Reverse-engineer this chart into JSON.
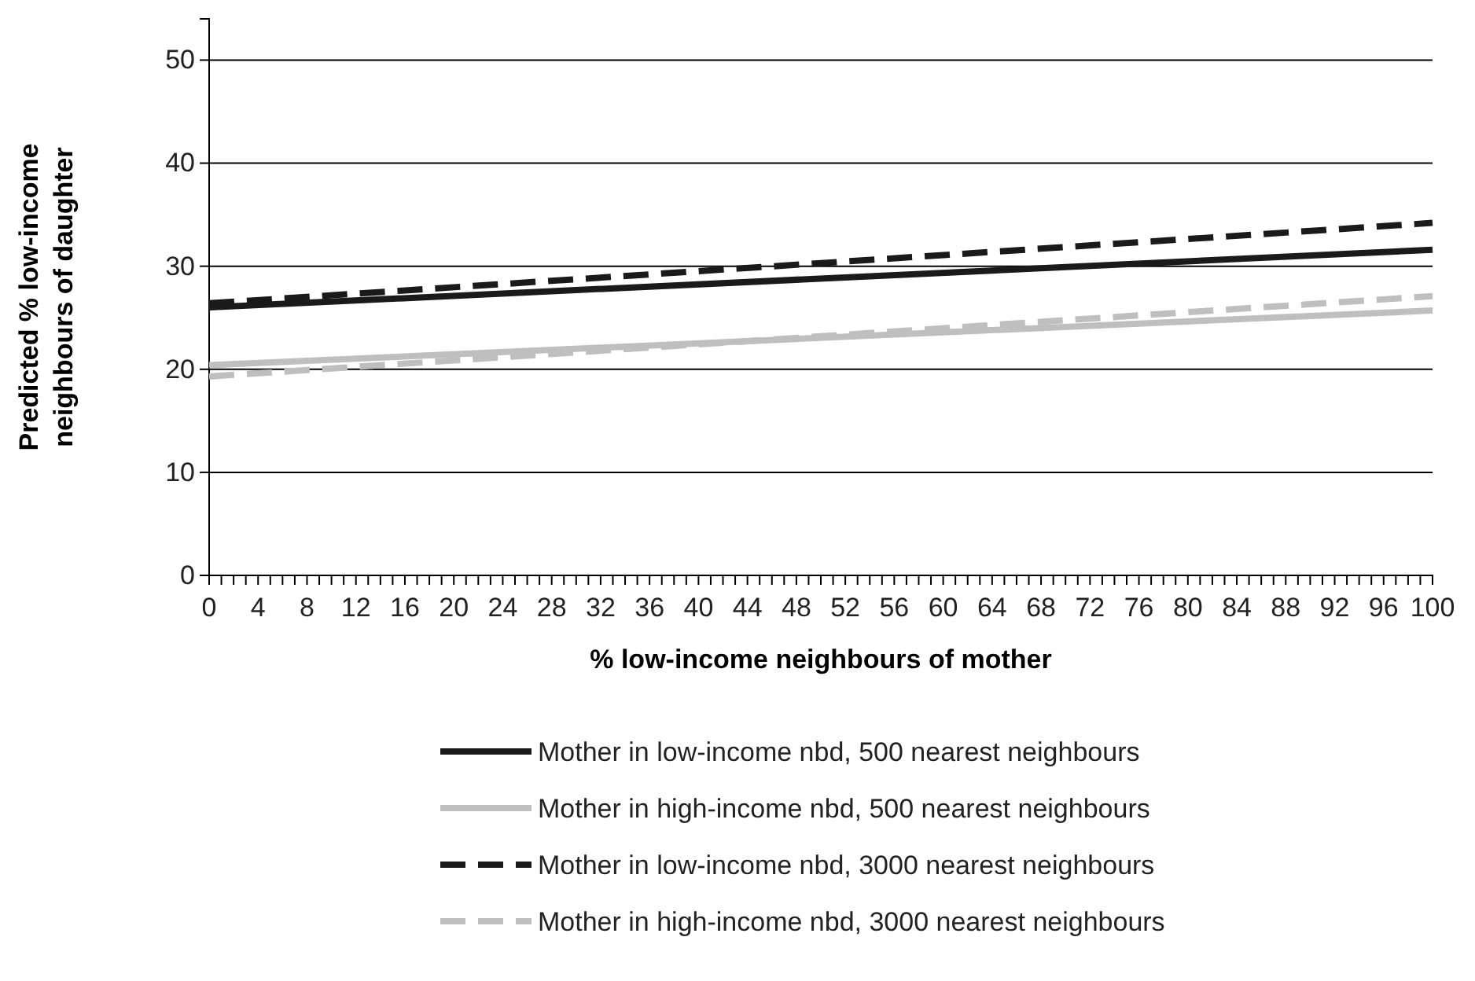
{
  "chart_data": {
    "type": "line",
    "xlabel": "% low-income neighbours of mother",
    "ylabel": "Predicted % low-income neighbours of daughter",
    "x": [
      0,
      100
    ],
    "series": [
      {
        "name": "Mother in low-income nbd, 500 nearest neighbours",
        "color": "#1a1a1a",
        "values": [
          26,
          31.6
        ],
        "line_style": "solid"
      },
      {
        "name": "Mother in high-income nbd, 500 nearest neighbours",
        "color": "#bfbfbf",
        "values": [
          20.4,
          25.7
        ],
        "line_style": "solid"
      },
      {
        "name": "Mother in low-income nbd, 3000 nearest neighbours",
        "color": "#1a1a1a",
        "values": [
          26.4,
          34.2
        ],
        "line_style": "dashed"
      },
      {
        "name": "Mother in high-income nbd, 3000 nearest neighbours",
        "color": "#bfbfbf",
        "values": [
          19.3,
          27.1
        ],
        "line_style": "dashed"
      }
    ],
    "xlim": [
      0,
      100
    ],
    "xticks": [
      0,
      {
        "value": 1,
        "label": null
      },
      {
        "value": 2,
        "label": null
      },
      {
        "value": 3,
        "label": null
      },
      4,
      {
        "value": 5,
        "label": null
      },
      {
        "value": 6,
        "label": null
      },
      {
        "value": 7,
        "label": null
      },
      8,
      {
        "value": 9,
        "label": null
      },
      {
        "value": 10,
        "label": null
      },
      {
        "value": 11,
        "label": null
      },
      12,
      {
        "value": 13,
        "label": null
      },
      {
        "value": 14,
        "label": null
      },
      {
        "value": 15,
        "label": null
      },
      16,
      {
        "value": 17,
        "label": null
      },
      {
        "value": 18,
        "label": null
      },
      {
        "value": 19,
        "label": null
      },
      20,
      {
        "value": 21,
        "label": null
      },
      {
        "value": 22,
        "label": null
      },
      {
        "value": 23,
        "label": null
      },
      24,
      {
        "value": 25,
        "label": null
      },
      {
        "value": 26,
        "label": null
      },
      {
        "value": 27,
        "label": null
      },
      28,
      {
        "value": 29,
        "label": null
      },
      {
        "value": 30,
        "label": null
      },
      {
        "value": 31,
        "label": null
      },
      32,
      {
        "value": 33,
        "label": null
      },
      {
        "value": 34,
        "label": null
      },
      {
        "value": 35,
        "label": null
      },
      36,
      {
        "value": 37,
        "label": null
      },
      {
        "value": 38,
        "label": null
      },
      {
        "value": 39,
        "label": null
      },
      40,
      {
        "value": 41,
        "label": null
      },
      {
        "value": 42,
        "label": null
      },
      {
        "value": 43,
        "label": null
      },
      44,
      {
        "value": 45,
        "label": null
      },
      {
        "value": 46,
        "label": null
      },
      {
        "value": 47,
        "label": null
      },
      48,
      {
        "value": 49,
        "label": null
      },
      {
        "value": 50,
        "label": null
      },
      {
        "value": 51,
        "label": null
      },
      52,
      {
        "value": 53,
        "label": null
      },
      {
        "value": 54,
        "label": null
      },
      {
        "value": 55,
        "label": null
      },
      56,
      {
        "value": 57,
        "label": null
      },
      {
        "value": 58,
        "label": null
      },
      {
        "value": 59,
        "label": null
      },
      60,
      {
        "value": 61,
        "label": null
      },
      {
        "value": 62,
        "label": null
      },
      {
        "value": 63,
        "label": null
      },
      64,
      {
        "value": 65,
        "label": null
      },
      {
        "value": 66,
        "label": null
      },
      {
        "value": 67,
        "label": null
      },
      68,
      {
        "value": 69,
        "label": null
      },
      {
        "value": 70,
        "label": null
      },
      {
        "value": 71,
        "label": null
      },
      72,
      {
        "value": 73,
        "label": null
      },
      {
        "value": 74,
        "label": null
      },
      {
        "value": 75,
        "label": null
      },
      76,
      {
        "value": 77,
        "label": null
      },
      {
        "value": 78,
        "label": null
      },
      {
        "value": 79,
        "label": null
      },
      80,
      {
        "value": 81,
        "label": null
      },
      {
        "value": 82,
        "label": null
      },
      {
        "value": 83,
        "label": null
      },
      84,
      {
        "value": 85,
        "label": null
      },
      {
        "value": 86,
        "label": null
      },
      {
        "value": 87,
        "label": null
      },
      88,
      {
        "value": 89,
        "label": null
      },
      {
        "value": 90,
        "label": null
      },
      {
        "value": 91,
        "label": null
      },
      92,
      {
        "value": 93,
        "label": null
      },
      {
        "value": 94,
        "label": null
      },
      {
        "value": 95,
        "label": null
      },
      96,
      {
        "value": 97,
        "label": null
      },
      {
        "value": 98,
        "label": null
      },
      {
        "value": 99,
        "label": null
      },
      100
    ],
    "ylim": [
      0,
      54
    ],
    "yticks": [
      0,
      10,
      20,
      30,
      40,
      50
    ],
    "grid": "y",
    "legend": "bottom",
    "marker": "none"
  }
}
